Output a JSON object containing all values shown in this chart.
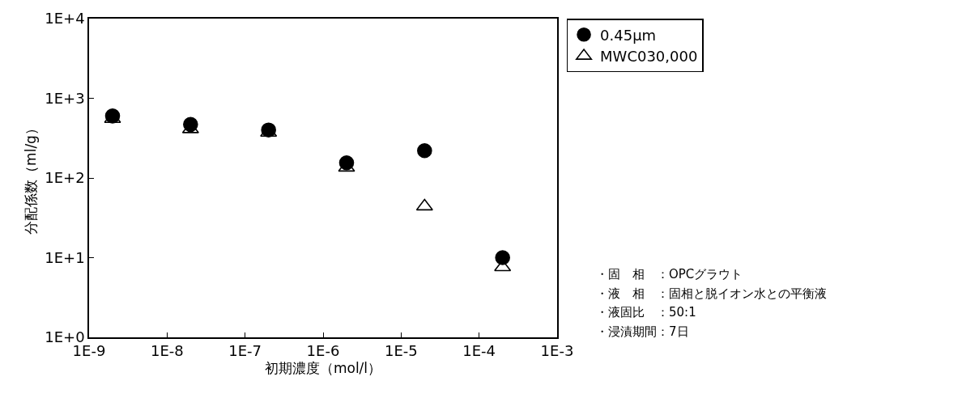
{
  "chart_data": {
    "type": "scatter",
    "xlabel": "初期濃度（mol/l）",
    "ylabel": "分配係数（ml/g）",
    "log": "xy",
    "xlim": [
      1e-09,
      0.001
    ],
    "ylim": [
      1,
      10000
    ],
    "xticks": [
      {
        "value": 1e-09,
        "label": "1E-9"
      },
      {
        "value": 1e-08,
        "label": "1E-8"
      },
      {
        "value": 1e-07,
        "label": "1E-7"
      },
      {
        "value": 1e-06,
        "label": "1E-6"
      },
      {
        "value": 1e-05,
        "label": "1E-5"
      },
      {
        "value": 0.0001,
        "label": "1E-4"
      },
      {
        "value": 0.001,
        "label": "1E-3"
      }
    ],
    "yticks": [
      {
        "value": 1,
        "label": "1E+0"
      },
      {
        "value": 10,
        "label": "1E+1"
      },
      {
        "value": 100,
        "label": "1E+2"
      },
      {
        "value": 1000,
        "label": "1E+3"
      },
      {
        "value": 10000,
        "label": "1E+4"
      }
    ],
    "x": [
      2e-09,
      2e-08,
      2e-07,
      2e-06,
      2e-05,
      0.0002
    ],
    "series": [
      {
        "name": "0.45μm",
        "color": "#000000",
        "marker": "circle",
        "values": [
          600,
          470,
          400,
          155,
          220,
          10
        ]
      },
      {
        "name": "MWC030,000",
        "color": "#000000",
        "marker": "triangle",
        "values": [
          550,
          410,
          370,
          135,
          44,
          7.6
        ]
      }
    ],
    "legend": "top right",
    "annotations": [
      "・固　相　：OPCグラウト",
      "・液　相　：固相と脱イオン水との平衡液",
      "・液固比　：50:1",
      "・浸漬期間：7日"
    ]
  }
}
